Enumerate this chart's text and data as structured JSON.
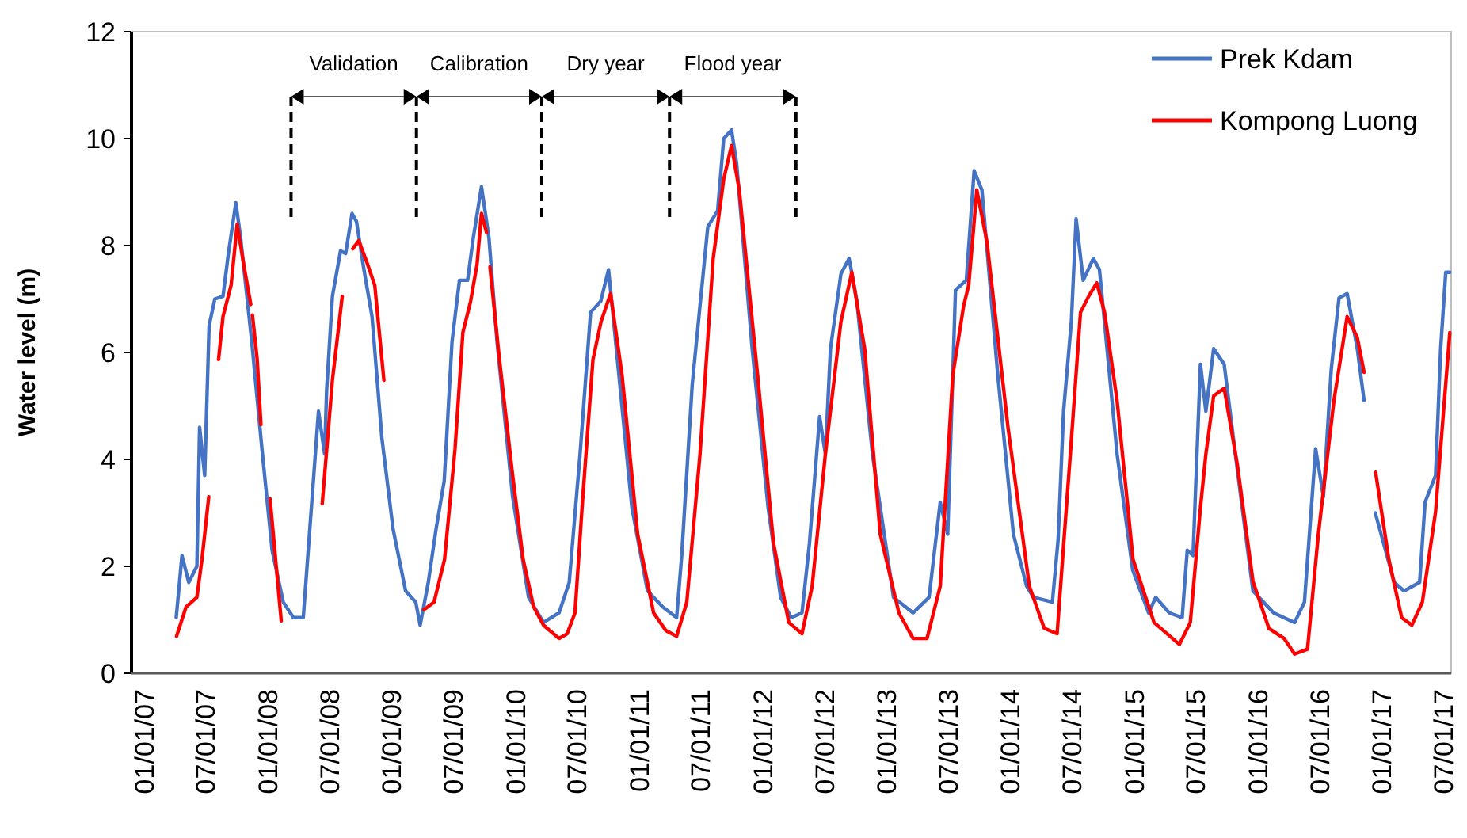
{
  "chart_data": {
    "type": "line",
    "ylabel": "Water level (m)",
    "xlim": [
      "2006-11-25",
      "2017-07-25"
    ],
    "ylim": [
      0,
      12
    ],
    "yticks": [
      0,
      2,
      4,
      6,
      8,
      10,
      12
    ],
    "xticks": [
      {
        "value": "2007-01-01",
        "label": "01/01/07"
      },
      {
        "value": "2007-07-01",
        "label": "07/01/07"
      },
      {
        "value": "2008-01-01",
        "label": "01/01/08"
      },
      {
        "value": "2008-07-01",
        "label": "07/01/08"
      },
      {
        "value": "2009-01-01",
        "label": "01/01/09"
      },
      {
        "value": "2009-07-01",
        "label": "07/01/09"
      },
      {
        "value": "2010-01-01",
        "label": "01/01/10"
      },
      {
        "value": "2010-07-01",
        "label": "07/01/10"
      },
      {
        "value": "2011-01-01",
        "label": "01/01/11"
      },
      {
        "value": "2011-07-01",
        "label": "07/01/11"
      },
      {
        "value": "2012-01-01",
        "label": "01/01/12"
      },
      {
        "value": "2012-07-01",
        "label": "07/01/12"
      },
      {
        "value": "2013-01-01",
        "label": "01/01/13"
      },
      {
        "value": "2013-07-01",
        "label": "07/01/13"
      },
      {
        "value": "2014-01-01",
        "label": "01/01/14"
      },
      {
        "value": "2014-07-01",
        "label": "07/01/14"
      },
      {
        "value": "2015-01-01",
        "label": "01/01/15"
      },
      {
        "value": "2015-07-01",
        "label": "07/01/15"
      },
      {
        "value": "2016-01-01",
        "label": "01/01/16"
      },
      {
        "value": "2016-07-01",
        "label": "07/01/16"
      },
      {
        "value": "2017-01-01",
        "label": "01/01/17"
      },
      {
        "value": "2017-07-01",
        "label": "07/01/17"
      }
    ],
    "grid": false,
    "legend": "top right",
    "marker": "none",
    "line_style": "solid",
    "ref_lines": [
      {
        "axis": "x",
        "value": "2008-03-10",
        "line_style": "dashed",
        "color": "#000000"
      },
      {
        "axis": "x",
        "value": "2009-03-15",
        "line_style": "dashed",
        "color": "#000000"
      },
      {
        "axis": "x",
        "value": "2010-03-20",
        "line_style": "dashed",
        "color": "#000000"
      },
      {
        "axis": "x",
        "value": "2011-04-01",
        "line_style": "dashed",
        "color": "#000000"
      },
      {
        "axis": "x",
        "value": "2012-04-08",
        "line_style": "dashed",
        "color": "#000000"
      }
    ],
    "annotations": [
      "Validation",
      "Calibration",
      "Dry year",
      "Flood year"
    ],
    "series": [
      {
        "name": "Prek Kdam",
        "color": "#4472c4",
        "x": [
          "2007-04-06",
          "2007-04-23",
          "2007-05-13",
          "2007-06-06",
          "2007-06-14",
          "2007-06-29",
          "2007-07-12",
          "2007-07-29",
          "2007-08-22",
          "2007-09-07",
          "2007-09-29",
          "2007-10-13",
          "2007-11-15",
          "2007-12-15",
          "2008-01-14",
          "2008-02-16",
          "2008-03-17",
          "2008-04-15",
          "2008-05-02",
          "2008-05-30",
          "2008-06-17",
          "2008-06-23",
          "2008-07-10",
          "2008-08-03",
          "2008-08-18",
          "2008-09-06",
          "2008-09-19",
          "2008-10-11",
          "2008-11-04",
          "2008-12-03",
          "2009-01-05",
          "2009-02-11",
          "2009-03-13",
          "2009-03-26",
          "2009-04-19",
          "2009-05-12",
          "2009-06-05",
          "2009-06-28",
          "2009-07-20",
          "2009-08-13",
          "2009-08-30",
          "2009-09-23",
          "2009-10-15",
          "2009-11-08",
          "2009-12-24",
          "2010-02-09",
          "2010-03-25",
          "2010-05-10",
          "2010-06-09",
          "2010-07-11",
          "2010-08-11",
          "2010-09-10",
          "2010-10-03",
          "2010-10-26",
          "2010-12-11",
          "2011-01-26",
          "2011-03-12",
          "2011-04-22",
          "2011-05-07",
          "2011-06-07",
          "2011-07-23",
          "2011-08-21",
          "2011-09-08",
          "2011-10-01",
          "2011-10-16",
          "2011-12-01",
          "2012-01-17",
          "2012-02-23",
          "2012-03-25",
          "2012-04-26",
          "2012-05-18",
          "2012-06-17",
          "2012-07-04",
          "2012-07-19",
          "2012-08-19",
          "2012-09-12",
          "2012-10-05",
          "2012-11-20",
          "2013-01-21",
          "2013-03-20",
          "2013-05-06",
          "2013-06-08",
          "2013-06-30",
          "2013-07-23",
          "2013-08-24",
          "2013-09-16",
          "2013-10-09",
          "2013-11-25",
          "2014-01-10",
          "2014-02-18",
          "2014-03-10",
          "2014-05-05",
          "2014-05-22",
          "2014-06-07",
          "2014-06-30",
          "2014-07-14",
          "2014-08-04",
          "2014-09-03",
          "2014-09-21",
          "2014-11-12",
          "2014-12-28",
          "2015-02-13",
          "2015-03-06",
          "2015-04-15",
          "2015-05-23",
          "2015-06-07",
          "2015-06-24",
          "2015-07-16",
          "2015-08-01",
          "2015-08-24",
          "2015-09-24",
          "2015-11-02",
          "2015-12-18",
          "2016-02-17",
          "2016-04-19",
          "2016-05-18",
          "2016-06-20",
          "2016-07-13",
          "2016-08-05",
          "2016-08-28",
          "2016-09-21",
          "2016-10-21",
          "2016-11-10",
          "2016-11-28",
          "2016-12-13",
          "2017-02-07",
          "2017-03-08",
          "2017-04-23",
          "2017-05-09",
          "2017-06-09",
          "2017-06-24",
          "2017-07-09",
          "2017-07-21"
        ],
        "values": [
          1.04,
          2.2,
          1.7,
          2.0,
          4.6,
          3.7,
          6.5,
          7.0,
          7.05,
          7.85,
          8.8,
          8.15,
          6.2,
          4.2,
          2.3,
          1.33,
          1.04,
          1.04,
          2.5,
          4.9,
          4.1,
          5.3,
          7.05,
          7.9,
          7.85,
          8.6,
          8.45,
          7.55,
          6.67,
          4.4,
          2.7,
          1.54,
          1.33,
          0.9,
          1.7,
          2.7,
          3.6,
          6.2,
          7.35,
          7.35,
          8.15,
          9.1,
          8.15,
          6.2,
          3.3,
          1.42,
          0.95,
          1.13,
          1.7,
          4.1,
          6.75,
          6.96,
          7.55,
          6.07,
          3.1,
          1.54,
          1.24,
          1.04,
          2.2,
          5.4,
          8.35,
          8.65,
          10.0,
          10.16,
          9.54,
          6.07,
          3.1,
          1.42,
          1.04,
          1.13,
          2.43,
          4.8,
          4.1,
          6.07,
          7.47,
          7.76,
          6.96,
          4.1,
          1.42,
          1.13,
          1.42,
          3.2,
          2.6,
          7.17,
          7.35,
          9.4,
          9.04,
          5.57,
          2.6,
          1.63,
          1.42,
          1.33,
          2.5,
          4.9,
          6.58,
          8.5,
          7.35,
          7.76,
          7.55,
          4.1,
          1.93,
          1.13,
          1.42,
          1.13,
          1.04,
          2.3,
          2.2,
          5.78,
          4.9,
          6.07,
          5.78,
          3.8,
          1.54,
          1.13,
          0.95,
          1.33,
          4.2,
          3.3,
          5.68,
          7.02,
          7.1,
          6.07,
          5.1,
          null,
          3.0,
          1.7,
          1.54,
          1.7,
          3.2,
          3.7,
          6.07,
          7.5,
          7.5
        ]
      },
      {
        "name": "Kompong Luong",
        "color": "#ff0000",
        "x": [
          "2007-04-07",
          "2007-05-05",
          "2007-06-06",
          "2007-06-21",
          "2007-07-11",
          "2007-07-25",
          "2007-08-09",
          "2007-08-22",
          "2007-09-15",
          "2007-10-03",
          "2007-10-22",
          "2007-11-12",
          "2007-11-14",
          "2007-11-17",
          "2007-12-01",
          "2007-12-12",
          "2007-12-25",
          "2008-01-08",
          "2008-02-10",
          "2008-04-20",
          "2008-06-10",
          "2008-07-10",
          "2008-08-08",
          "2008-08-24",
          "2008-09-08",
          "2008-09-26",
          "2008-10-19",
          "2008-11-12",
          "2008-12-09",
          "2009-02-20",
          "2009-04-06",
          "2009-05-06",
          "2009-06-06",
          "2009-07-07",
          "2009-07-30",
          "2009-08-22",
          "2009-09-10",
          "2009-09-23",
          "2009-10-08",
          "2009-10-13",
          "2009-10-18",
          "2009-11-15",
          "2009-12-24",
          "2010-01-24",
          "2010-02-24",
          "2010-03-25",
          "2010-05-10",
          "2010-06-03",
          "2010-06-26",
          "2010-07-18",
          "2010-08-18",
          "2010-09-11",
          "2010-10-09",
          "2010-11-12",
          "2010-12-28",
          "2011-02-13",
          "2011-03-21",
          "2011-04-22",
          "2011-05-22",
          "2011-06-30",
          "2011-08-08",
          "2011-09-08",
          "2011-10-01",
          "2011-10-24",
          "2011-12-17",
          "2012-02-02",
          "2012-03-18",
          "2012-04-26",
          "2012-05-26",
          "2012-07-04",
          "2012-08-19",
          "2012-09-20",
          "2012-10-28",
          "2012-12-13",
          "2013-02-06",
          "2013-03-20",
          "2013-04-30",
          "2013-06-08",
          "2013-07-15",
          "2013-08-16",
          "2013-08-31",
          "2013-09-24",
          "2013-10-24",
          "2013-12-25",
          "2014-02-26",
          "2014-04-11",
          "2014-05-19",
          "2014-06-04",
          "2014-06-27",
          "2014-07-27",
          "2014-08-20",
          "2014-09-13",
          "2014-10-06",
          "2014-11-12",
          "2014-12-29",
          "2015-03-01",
          "2015-05-15",
          "2015-06-16",
          "2015-07-16",
          "2015-08-01",
          "2015-08-24",
          "2015-09-24",
          "2015-11-02",
          "2015-12-18",
          "2016-02-03",
          "2016-03-19",
          "2016-04-19",
          "2016-05-27",
          "2016-06-28",
          "2016-08-13",
          "2016-09-21",
          "2016-10-21",
          "2016-11-10",
          "2016-11-28",
          "2016-12-14",
          "2017-01-22",
          "2017-03-01",
          "2017-03-31",
          "2017-05-01",
          "2017-06-09",
          "2017-07-21"
        ],
        "values": [
          0.69,
          1.24,
          1.42,
          2.13,
          3.3,
          null,
          5.87,
          6.67,
          7.26,
          8.4,
          7.65,
          6.9,
          null,
          6.7,
          5.87,
          4.65,
          null,
          3.26,
          0.98,
          null,
          3.17,
          5.48,
          7.05,
          null,
          7.94,
          8.09,
          7.7,
          7.26,
          5.48,
          null,
          1.19,
          1.33,
          2.13,
          4.2,
          6.37,
          6.96,
          7.65,
          8.6,
          8.24,
          null,
          7.6,
          5.87,
          3.7,
          2.13,
          1.24,
          0.9,
          0.65,
          0.74,
          1.13,
          3.2,
          5.87,
          6.58,
          7.1,
          5.57,
          2.6,
          1.13,
          0.8,
          0.69,
          1.33,
          4.1,
          7.76,
          9.24,
          9.87,
          9.04,
          5.57,
          2.43,
          0.95,
          0.74,
          1.63,
          4.1,
          6.58,
          7.5,
          6.07,
          2.6,
          1.13,
          0.65,
          0.65,
          1.63,
          5.57,
          6.87,
          7.26,
          9.04,
          8.06,
          4.6,
          1.63,
          0.84,
          0.74,
          2.13,
          4.1,
          6.75,
          7.05,
          7.3,
          6.75,
          5.1,
          2.13,
          0.95,
          0.54,
          0.95,
          3.1,
          4.1,
          5.19,
          5.33,
          3.9,
          1.72,
          0.84,
          0.65,
          0.36,
          0.45,
          2.6,
          5.1,
          6.67,
          6.28,
          5.63,
          null,
          3.76,
          2.13,
          1.04,
          0.9,
          1.33,
          3.02,
          6.37
        ]
      }
    ]
  }
}
